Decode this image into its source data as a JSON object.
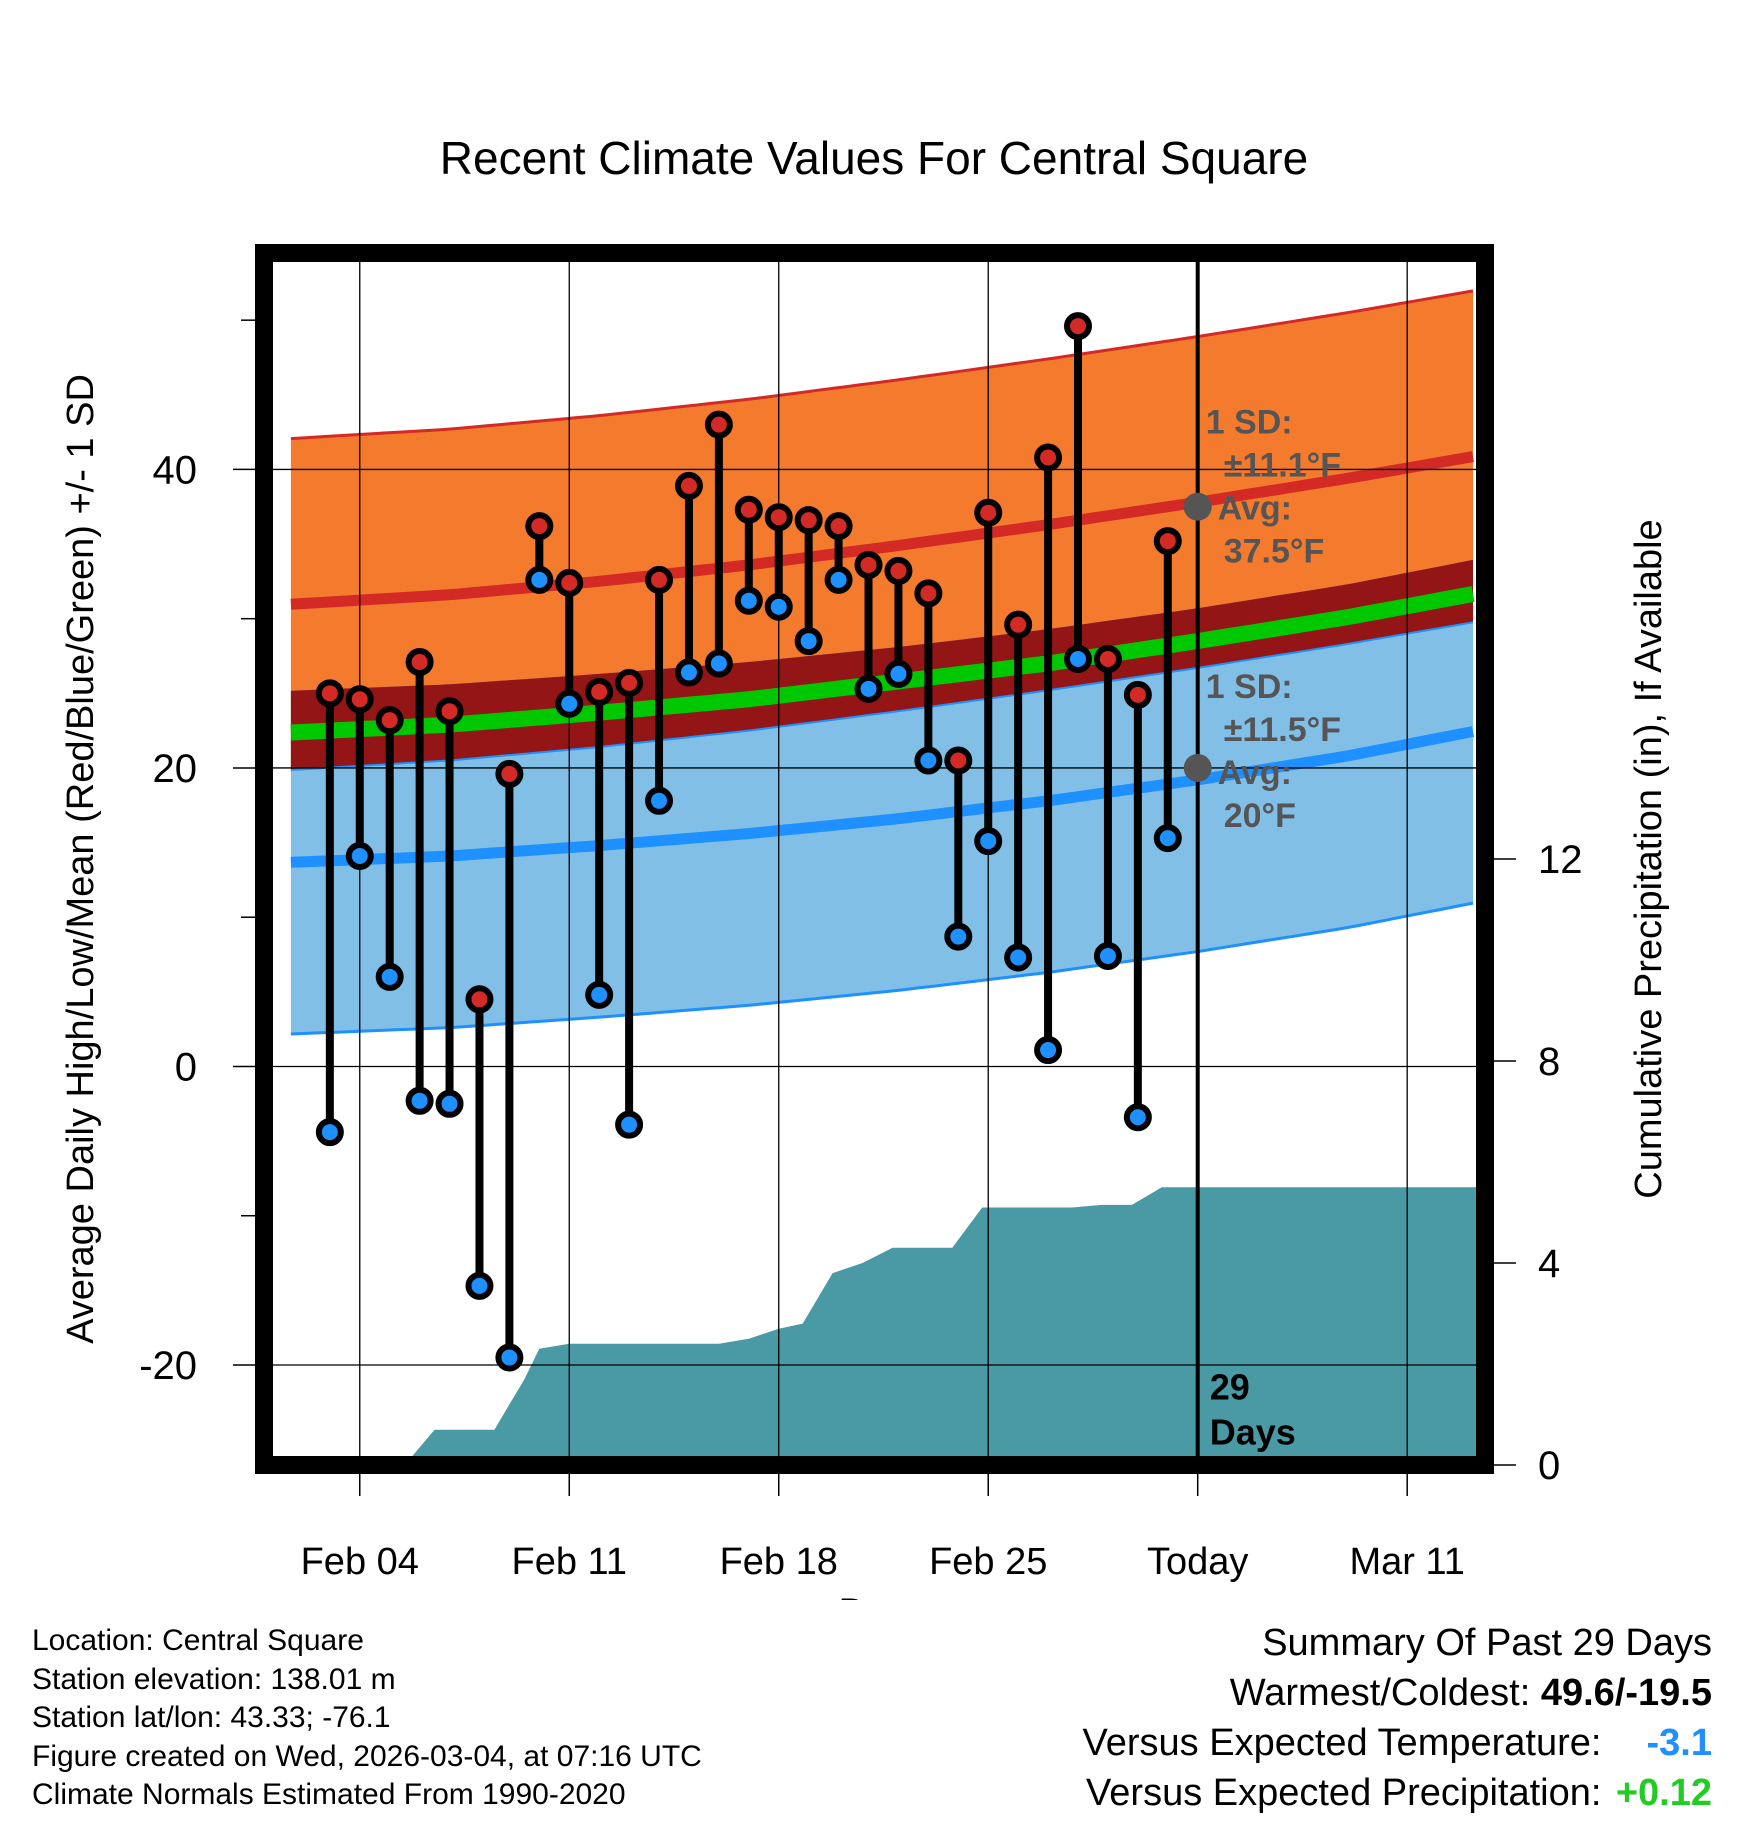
{
  "chart_data": {
    "type": "line",
    "title": "Recent Climate Values For Central Square",
    "xlabel": "Day",
    "ylabel": "Average Daily High/Low/Mean (Red/Blue/Green) +/- 1 SD",
    "y2label": "Cumulative Precipitation (in), If Available",
    "x_ticks": [
      "Feb 04",
      "Feb 11",
      "Feb 18",
      "Feb 25",
      "Today",
      "Mar 11"
    ],
    "x_tick_days": [
      -28,
      -21,
      -14,
      -7,
      0,
      7
    ],
    "x_range": [
      -31.2,
      9.6
    ],
    "y_ticks": [
      "-20",
      "0",
      "20",
      "40"
    ],
    "y_tick_values": [
      -20,
      0,
      20,
      40
    ],
    "y_minor_ticks": [
      -10,
      10,
      30,
      50
    ],
    "ylim": [
      -26.7,
      54.5
    ],
    "y2_ticks": [
      "0",
      "4",
      "8",
      "12"
    ],
    "y2_tick_values": [
      0,
      4,
      8,
      12
    ],
    "y2lim": [
      0,
      24
    ],
    "normal_high": {
      "x": [
        -30,
        -25,
        -20,
        -15,
        -10,
        -5,
        0,
        5,
        9.6
      ],
      "avg": [
        31.0,
        31.6,
        32.5,
        33.6,
        34.9,
        36.3,
        37.8,
        39.4,
        41.0
      ],
      "sd": 11.1
    },
    "normal_low": {
      "x": [
        -30,
        -25,
        -20,
        -15,
        -10,
        -5,
        0,
        5,
        9.6
      ],
      "avg": [
        13.7,
        14.1,
        14.8,
        15.6,
        16.6,
        17.8,
        19.2,
        20.8,
        22.6
      ],
      "sd": 11.5
    },
    "normal_mean": {
      "x": [
        -30,
        -25,
        -20,
        -15,
        -10,
        -5,
        0,
        5,
        9.6
      ],
      "avg": [
        22.4,
        22.9,
        23.7,
        24.6,
        25.8,
        27.0,
        28.5,
        30.1,
        31.8
      ]
    },
    "daily_highs": [
      25.0,
      24.6,
      23.2,
      27.1,
      23.8,
      4.5,
      19.6,
      36.2,
      32.4,
      25.1,
      25.7,
      32.6,
      38.9,
      43.0,
      37.3,
      36.8,
      36.6,
      36.2,
      33.6,
      33.2,
      31.7,
      20.5,
      37.1,
      29.6,
      40.8,
      49.6,
      27.3,
      24.9,
      35.2
    ],
    "daily_lows": [
      -4.4,
      14.1,
      6.0,
      -2.3,
      -2.5,
      -14.7,
      -19.5,
      32.6,
      24.3,
      4.8,
      -3.9,
      17.8,
      26.4,
      27.0,
      31.2,
      30.8,
      28.5,
      32.6,
      25.3,
      26.3,
      20.5,
      8.7,
      15.1,
      7.3,
      1.1,
      27.3,
      7.4,
      -3.4,
      15.3
    ],
    "daily_days": [
      -29,
      -28,
      -27,
      -26,
      -25,
      -24,
      -23,
      -22,
      -21,
      -20,
      -19,
      -18,
      -17,
      -16,
      -15,
      -14,
      -13,
      -12,
      -11,
      -10,
      -9,
      -8,
      -7,
      -6,
      -5,
      -4,
      -3,
      -2,
      -1
    ],
    "cumulative_precip": {
      "x": [
        -30.3,
        -26.5,
        -25.5,
        -24.5,
        -23.5,
        -22.5,
        -22,
        -21,
        -20,
        -19,
        -18,
        -17,
        -16,
        -15,
        -14,
        -13.2,
        -12.2,
        -11.2,
        -10.2,
        -9.2,
        -8.2,
        -7.2,
        -6.2,
        -5.2,
        -4.2,
        -3.2,
        -2.2,
        -1.2,
        0,
        9.6
      ],
      "y": [
        0,
        0,
        0.7,
        0.7,
        0.7,
        1.7,
        2.3,
        2.4,
        2.4,
        2.4,
        2.4,
        2.4,
        2.4,
        2.5,
        2.7,
        2.8,
        3.8,
        4.0,
        4.3,
        4.3,
        4.3,
        5.1,
        5.1,
        5.1,
        5.1,
        5.15,
        5.15,
        5.5,
        5.5,
        5.5
      ]
    },
    "high_annotation": [
      "1 SD:",
      "±11.1°F",
      "Avg:",
      "37.5°F"
    ],
    "low_annotation": [
      "1 SD:",
      "±11.5°F",
      "Avg:",
      "20°F"
    ],
    "today_label": [
      "29",
      "Days"
    ],
    "colors": {
      "high_band": "#f47a2e",
      "high_line": "#d42a26",
      "mean_band": "#931515",
      "mean_line": "#00c800",
      "low_band": "#82bfe6",
      "low_line": "#1e90ff",
      "precip": "#4a9aa5",
      "marker_high": "#d42a26",
      "marker_low": "#1e90ff",
      "annotation": "#555555"
    }
  },
  "footer": {
    "location": "Location: Central Square",
    "elevation": "Station elevation: 138.01 m",
    "latlon": "Station lat/lon: 43.33; -76.1",
    "created": "Figure created on Wed, 2026-03-04, at 07:16 UTC",
    "normals": "Climate Normals Estimated From 1990-2020"
  },
  "summary": {
    "title": "Summary Of Past 29 Days",
    "warm_cold_label": "Warmest/Coldest:",
    "warm_cold_value": "49.6/-19.5",
    "temp_label": "Versus Expected Temperature:",
    "temp_value": "-3.1",
    "temp_color": "#1e90ff",
    "precip_label": "Versus Expected Precipitation:",
    "precip_value": "+0.12",
    "precip_color": "#22cc22"
  }
}
